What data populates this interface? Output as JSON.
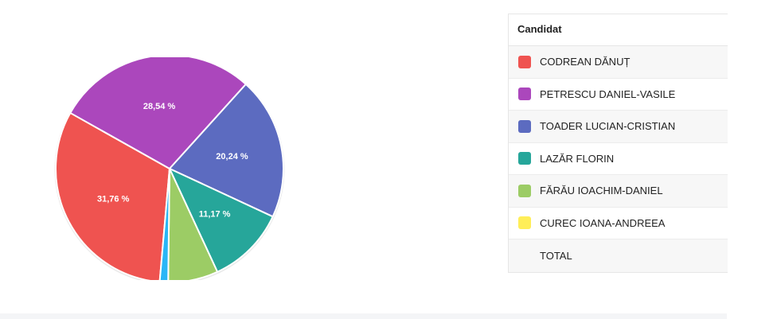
{
  "chart_data": {
    "type": "pie",
    "slices": [
      {
        "name": "CODREAN DĂNUȚ",
        "value": 31.76,
        "label": "31,76 %",
        "color": "#ef5350"
      },
      {
        "name": "PETRESCU DANIEL-VASILE",
        "value": 28.54,
        "label": "28,54 %",
        "color": "#ab47bc"
      },
      {
        "name": "TOADER LUCIAN-CRISTIAN",
        "value": 20.24,
        "label": "20,24 %",
        "color": "#5c6bc0"
      },
      {
        "name": "LAZĂR FLORIN",
        "value": 11.17,
        "label": "11,17 %",
        "color": "#26a69a"
      },
      {
        "name": "FĂRĂU IOACHIM-DANIEL",
        "value": 7.1,
        "label": "",
        "color": "#9ccc65"
      },
      {
        "name": "",
        "value": 1.19,
        "label": "",
        "color": "#29b6f6"
      },
      {
        "name": "CUREC IOANA-ANDREEA",
        "value": 0,
        "label": "",
        "color": "#ffee58"
      }
    ]
  },
  "legend": {
    "header": "Candidat",
    "rows": [
      {
        "label": "CODREAN DĂNUȚ",
        "color": "#ef5350"
      },
      {
        "label": "PETRESCU DANIEL-VASILE",
        "color": "#ab47bc"
      },
      {
        "label": "TOADER LUCIAN-CRISTIAN",
        "color": "#5c6bc0"
      },
      {
        "label": "LAZĂR FLORIN",
        "color": "#26a69a"
      },
      {
        "label": "FĂRĂU IOACHIM-DANIEL",
        "color": "#9ccc65"
      },
      {
        "label": "CUREC IOANA-ANDREEA",
        "color": "#ffee58"
      },
      {
        "label": "TOTAL",
        "color": ""
      }
    ]
  }
}
